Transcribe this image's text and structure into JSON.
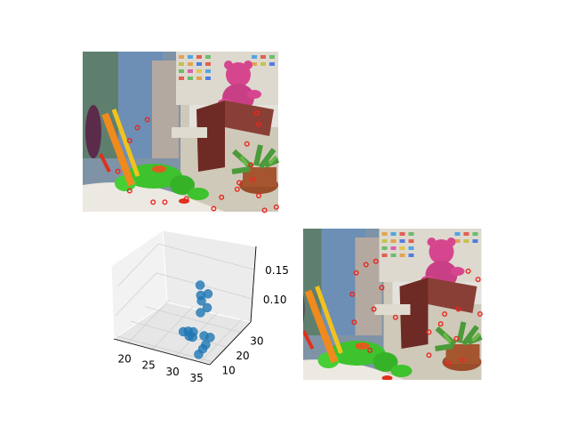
{
  "figure": {
    "panels": [
      "image-top-left",
      "scatter-3d-bottom-left",
      "image-bottom-right"
    ]
  },
  "chart_data": [
    {
      "type": "image",
      "panel": "top-left",
      "description_keys": [
        "pink-teddy-bear",
        "green-frog-toy",
        "potted-plant",
        "wooden-box",
        "color-chart-background"
      ],
      "keypoint_color": "#e8261f",
      "keypoints_xy_norm": [
        [
          0.33,
          0.42
        ],
        [
          0.28,
          0.47
        ],
        [
          0.24,
          0.55
        ],
        [
          0.18,
          0.74
        ],
        [
          0.24,
          0.86
        ],
        [
          0.36,
          0.93
        ],
        [
          0.42,
          0.93
        ],
        [
          0.53,
          0.91
        ],
        [
          0.67,
          0.97
        ],
        [
          0.71,
          0.9
        ],
        [
          0.79,
          0.85
        ],
        [
          0.8,
          0.81
        ],
        [
          0.86,
          0.7
        ],
        [
          0.84,
          0.57
        ],
        [
          0.9,
          0.45
        ],
        [
          0.89,
          0.38
        ],
        [
          0.87,
          0.79
        ],
        [
          0.9,
          0.89
        ],
        [
          0.93,
          0.98
        ],
        [
          0.99,
          0.96
        ]
      ]
    },
    {
      "type": "scatter3d",
      "panel": "bottom-left",
      "xlim": [
        17,
        37
      ],
      "ylim": [
        8,
        37
      ],
      "zlim": [
        0.06,
        0.19
      ],
      "xticks": [
        "20",
        "25",
        "30",
        "35"
      ],
      "yticks": [
        "10",
        "20",
        "30"
      ],
      "zticks": [
        "0.10",
        "0.15"
      ],
      "marker_color": "#1f77b4",
      "points": [
        {
          "x": 32,
          "y": 15,
          "z": 0.168
        },
        {
          "x": 34,
          "y": 14,
          "z": 0.16
        },
        {
          "x": 32,
          "y": 16,
          "z": 0.148
        },
        {
          "x": 32.5,
          "y": 15,
          "z": 0.142
        },
        {
          "x": 33.5,
          "y": 16,
          "z": 0.13
        },
        {
          "x": 33,
          "y": 13,
          "z": 0.128
        },
        {
          "x": 29.5,
          "y": 14,
          "z": 0.085
        },
        {
          "x": 30.5,
          "y": 14,
          "z": 0.088
        },
        {
          "x": 31,
          "y": 16,
          "z": 0.083
        },
        {
          "x": 31.5,
          "y": 14,
          "z": 0.08
        },
        {
          "x": 30.5,
          "y": 15,
          "z": 0.077
        },
        {
          "x": 33,
          "y": 17,
          "z": 0.078
        },
        {
          "x": 34,
          "y": 18,
          "z": 0.075
        },
        {
          "x": 34,
          "y": 15,
          "z": 0.07
        },
        {
          "x": 34,
          "y": 13,
          "z": 0.068
        },
        {
          "x": 33.5,
          "y": 12,
          "z": 0.06
        }
      ]
    },
    {
      "type": "image",
      "panel": "bottom-right",
      "description_keys": [
        "pink-teddy-bear",
        "green-frog-toy",
        "potted-plant",
        "wooden-box",
        "color-chart-background"
      ],
      "keypoint_color": "#e8261f",
      "keypoints_xy_norm": [
        [
          0.27,
          0.35
        ],
        [
          0.32,
          0.3
        ],
        [
          0.37,
          0.28
        ],
        [
          0.4,
          0.44
        ],
        [
          0.25,
          0.48
        ],
        [
          0.36,
          0.57
        ],
        [
          0.26,
          0.65
        ],
        [
          0.34,
          0.82
        ],
        [
          0.47,
          0.62
        ],
        [
          0.64,
          0.71
        ],
        [
          0.7,
          0.66
        ],
        [
          0.72,
          0.6
        ],
        [
          0.78,
          0.75
        ],
        [
          0.81,
          0.88
        ],
        [
          0.74,
          0.9
        ],
        [
          0.64,
          0.85
        ],
        [
          0.84,
          0.34
        ],
        [
          0.89,
          0.39
        ],
        [
          0.79,
          0.57
        ],
        [
          0.9,
          0.6
        ]
      ]
    }
  ]
}
